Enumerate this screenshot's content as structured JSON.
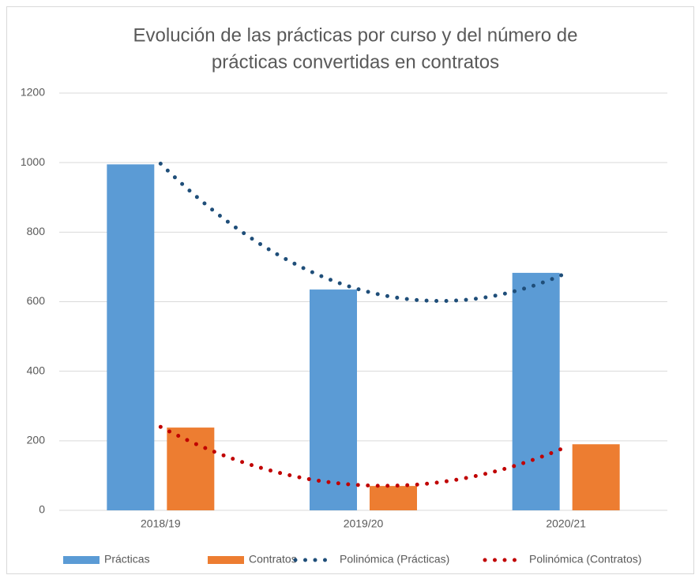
{
  "chart_data": {
    "type": "bar",
    "title": [
      "Evolución de las prácticas por curso y del número de",
      "prácticas convertidas en contratos"
    ],
    "categories": [
      "2018/19",
      "2019/20",
      "2020/21"
    ],
    "series": [
      {
        "name": "Prácticas",
        "color": "#5b9bd5",
        "values": [
          995,
          635,
          683
        ]
      },
      {
        "name": "Contratos",
        "color": "#ed7d31",
        "values": [
          238,
          70,
          190
        ]
      }
    ],
    "trendlines": [
      {
        "name": "Polinómica (Prácticas)",
        "color": "#1f4e79",
        "values": [
          997,
          632,
          682
        ]
      },
      {
        "name": "Polinómica (Contratos)",
        "color": "#c00000",
        "values": [
          240,
          72,
          182
        ]
      }
    ],
    "ylim": [
      0,
      1200
    ],
    "yticks": [
      0,
      200,
      400,
      600,
      800,
      1000,
      1200
    ],
    "grid": true,
    "legend": "bottom"
  }
}
